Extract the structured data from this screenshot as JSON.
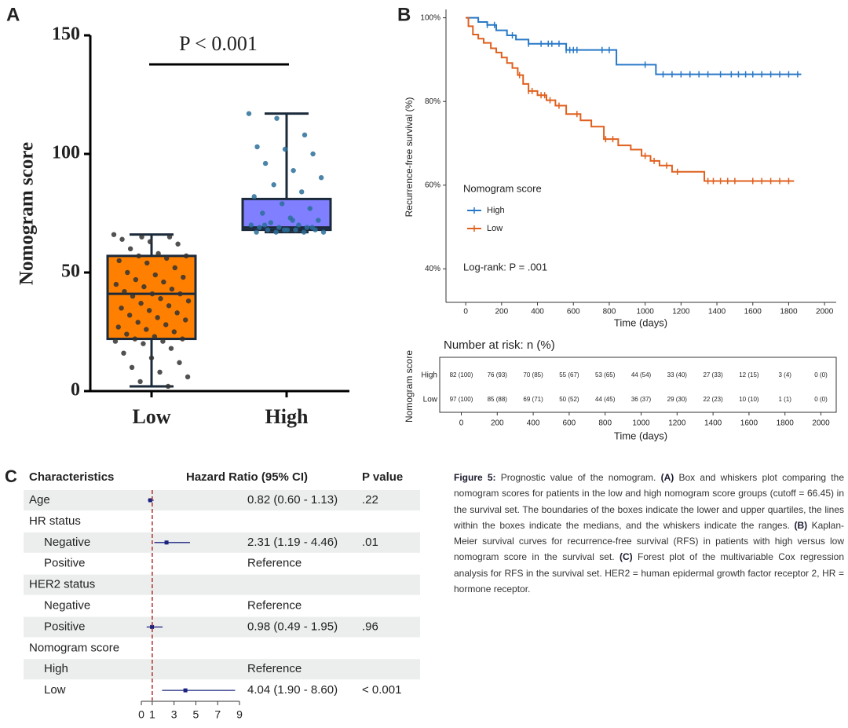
{
  "chart_data": [
    {
      "type": "box",
      "panel": "A",
      "ylabel": "Nomogram score",
      "annotation": "P < 0.001",
      "ylim": [
        0,
        150
      ],
      "yticks": [
        0,
        50,
        100,
        150
      ],
      "groups": [
        {
          "name": "Low",
          "color": "#ff8000",
          "point_color": "#333333",
          "stats": {
            "min": 2,
            "q1": 22,
            "median": 41,
            "q3": 57,
            "max": 66
          },
          "points": [
            66,
            65,
            65,
            64,
            63,
            62,
            60,
            58,
            57,
            57,
            56,
            55,
            54,
            52,
            50,
            49,
            48,
            47,
            46,
            45,
            44,
            43,
            42,
            41,
            41,
            40,
            39,
            38,
            37,
            36,
            35,
            34,
            33,
            32,
            31,
            30,
            29,
            28,
            27,
            26,
            25,
            24,
            23,
            22,
            22,
            21,
            21,
            20,
            18,
            16,
            14,
            12,
            10,
            8,
            6,
            4,
            2
          ]
        },
        {
          "name": "High",
          "color": "#7f7fff",
          "point_color": "#2a6f9a",
          "stats": {
            "min": 67,
            "q1": 68,
            "median": 69,
            "q3": 81,
            "max": 117
          },
          "points": [
            117,
            115,
            108,
            103,
            102,
            100,
            96,
            93,
            90,
            87,
            84,
            82,
            79,
            77,
            75,
            73,
            72,
            71,
            70,
            70,
            69,
            69,
            69,
            68,
            68,
            68,
            68,
            67,
            67,
            67,
            67,
            68,
            69,
            70,
            72
          ]
        }
      ]
    },
    {
      "type": "step",
      "panel": "B",
      "xlabel": "Time (days)",
      "ylabel": "Recurrence-free survival (%)",
      "xlim": [
        -110,
        2065
      ],
      "ylim": [
        32,
        102
      ],
      "xticks": [
        0,
        200,
        400,
        600,
        800,
        1000,
        1200,
        1400,
        1600,
        1800,
        2000
      ],
      "yticks": [
        {
          "value": 40,
          "label": "40%"
        },
        {
          "value": 60,
          "label": "60%"
        },
        {
          "value": 80,
          "label": "80%"
        },
        {
          "value": 100,
          "label": "100%"
        }
      ],
      "legend_title": "Nomogram score",
      "annotation": "Log-rank: P = .001",
      "series": [
        {
          "name": "High",
          "color": "#2878c8",
          "x": [
            0,
            70,
            120,
            170,
            230,
            280,
            350,
            560,
            840,
            1060,
            1870
          ],
          "values": [
            100,
            99,
            98.3,
            97,
            95.8,
            94.8,
            93.8,
            92.3,
            88.8,
            86.5,
            86.5
          ],
          "censored": [
            120,
            160,
            260,
            350,
            420,
            460,
            480,
            520,
            560,
            580,
            600,
            620,
            760,
            800,
            1000,
            1100,
            1150,
            1200,
            1250,
            1300,
            1350,
            1420,
            1480,
            1520,
            1560,
            1600,
            1650,
            1700,
            1750,
            1800,
            1850
          ]
        },
        {
          "name": "Low",
          "color": "#e0601f",
          "x": [
            0,
            15,
            40,
            70,
            100,
            140,
            170,
            200,
            230,
            260,
            290,
            320,
            350,
            400,
            450,
            500,
            560,
            640,
            700,
            770,
            850,
            920,
            980,
            1030,
            1080,
            1150,
            1330,
            1830
          ],
          "values": [
            100,
            98,
            96,
            95,
            94,
            92.7,
            91.7,
            90.5,
            89.2,
            88,
            86.3,
            84.2,
            82.5,
            81.5,
            80.3,
            79,
            77,
            75.5,
            74,
            71,
            69.5,
            68.5,
            67,
            65.8,
            64.7,
            63.2,
            61,
            61
          ],
          "censored": [
            300,
            350,
            370,
            420,
            440,
            470,
            520,
            620,
            780,
            820,
            1000,
            1050,
            1120,
            1180,
            1350,
            1380,
            1420,
            1460,
            1500,
            1600,
            1650,
            1700,
            1750,
            1800
          ]
        }
      ]
    },
    {
      "type": "risk_table",
      "title": "Number at risk: n (%)",
      "ylabel": "Nomogram score",
      "xlabel": "Time (days)",
      "xlim": [
        -120,
        2085
      ],
      "x": [
        0,
        200,
        400,
        600,
        800,
        1000,
        1200,
        1400,
        1600,
        1800,
        2000
      ],
      "rows": [
        {
          "name": "High",
          "color": "#2878c8",
          "cells": [
            "82 (100)",
            "76 (93)",
            "70 (85)",
            "55 (67)",
            "53 (65)",
            "44 (54)",
            "33 (40)",
            "27 (33)",
            "12 (15)",
            "3 (4)",
            "0 (0)"
          ]
        },
        {
          "name": "Low",
          "color": "#e0601f",
          "cells": [
            "97 (100)",
            "85 (88)",
            "69 (71)",
            "50 (52)",
            "44 (45)",
            "36 (37)",
            "29 (30)",
            "22 (23)",
            "10 (10)",
            "1 (1)",
            "0 (0)"
          ]
        }
      ]
    },
    {
      "type": "forest",
      "panel": "C",
      "headers": [
        "Characteristics",
        "Hazard Ratio (95% CI)",
        "P value"
      ],
      "xlim": [
        0,
        9
      ],
      "xticks": [
        0,
        1,
        3,
        5,
        7,
        9
      ],
      "reference_line": 1,
      "color": "#1a237e",
      "reference_color": "#b03030",
      "rows": [
        {
          "label": "Age",
          "hr": 0.82,
          "lower": 0.6,
          "upper": 1.13,
          "ci_text": "0.82 (0.60 - 1.13)",
          "p": ".22"
        },
        {
          "label": "HR status"
        },
        {
          "label": "Negative",
          "indent": true,
          "color": "#a52a2a",
          "hr": 2.31,
          "lower": 1.19,
          "upper": 4.46,
          "ci_text": "2.31 (1.19 - 4.46)",
          "p": ".01"
        },
        {
          "label": "Positive",
          "indent": true,
          "ci_text": "Reference"
        },
        {
          "label": "HER2 status"
        },
        {
          "label": "Negative",
          "indent": true,
          "ci_text": "Reference"
        },
        {
          "label": "Positive",
          "indent": true,
          "hr": 0.98,
          "lower": 0.49,
          "upper": 1.95,
          "ci_text": "0.98 (0.49 - 1.95)",
          "p": ".96"
        },
        {
          "label": "Nomogram score"
        },
        {
          "label": "High",
          "indent": true,
          "ci_text": "Reference"
        },
        {
          "label": "Low",
          "indent": true,
          "color": "#a52a2a",
          "hr": 4.04,
          "lower": 1.9,
          "upper": 8.6,
          "ci_text": "4.04 (1.90 - 8.60)",
          "p": "< 0.001"
        }
      ]
    }
  ],
  "caption": [
    {
      "text": "Figure 5:",
      "bold": true
    },
    {
      "text": "Prognostic value of the nomogram.",
      "bold": false
    },
    {
      "text": "(A)",
      "bold": true
    },
    {
      "text": "Box and whiskers plot comparing the nomogram scores for patients in the low and high nomogram score groups (cutoff = 66.45) in the survival set. The boundaries of the boxes indicate the lower and upper quartiles, the lines within the boxes indicate the medians, and the whiskers indicate the ranges.",
      "bold": false
    },
    {
      "text": "(B)",
      "bold": true
    },
    {
      "text": "Kaplan-Meier survival curves for recurrence-free survival (RFS) in patients with high versus low nomogram score in the survival set.",
      "bold": false
    },
    {
      "text": "(C)",
      "bold": true
    },
    {
      "text": "Forest plot of the multivariable Cox regression analysis for RFS in the survival set. HER2 = human epidermal growth factor receptor 2, HR = hormone receptor.",
      "bold": false
    }
  ]
}
